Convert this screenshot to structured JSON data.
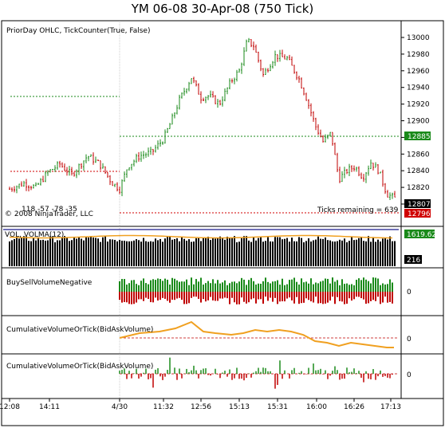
{
  "window": {
    "title": "YM 06-08  30-Apr-08 (750 Tick)"
  },
  "panels": {
    "price": {
      "label": "PriorDay OHLC, TickCounter(True, False)",
      "copyright": "© 2008 NinjaTrader, LLC",
      "ticks_text": "Ticks remaining = 639",
      "annot": "118 -57 -78 -35",
      "y_ticks": [
        "13000",
        "12980",
        "12960",
        "12940",
        "12920",
        "12900",
        "12880",
        "12860",
        "12840",
        "12820",
        "12800"
      ],
      "flags": [
        {
          "text": "12885",
          "color": "#1a8a1a"
        },
        {
          "text": "12807",
          "color": "#000000"
        },
        {
          "text": "12796",
          "color": "#d00000"
        }
      ]
    },
    "volume": {
      "label": "VOL, VOLMA(12)",
      "flags": [
        {
          "text": "1619.62",
          "color": "#1a8a1a"
        },
        {
          "text": "216",
          "color": "#000000"
        }
      ]
    },
    "bsv": {
      "label": "BuySellVolumeNegative",
      "zero": "0"
    },
    "cum1": {
      "label": "CumulativeVolumeOrTick(BidAskVolume)",
      "zero": "0"
    },
    "cum2": {
      "label": "CumulativeVolumeOrTick(BidAskVolume)",
      "zero": "0"
    }
  },
  "x_axis": {
    "ticks": [
      "12:08",
      "14:11",
      "4/30",
      "11:32",
      "12:56",
      "15:13",
      "15:31",
      "16:00",
      "16:26",
      "17:13"
    ]
  },
  "colors": {
    "up": "#1a8a1a",
    "down": "#c00000",
    "orange": "#f0a020",
    "navy": "#1a1a8a",
    "grid": "#000000"
  }
}
